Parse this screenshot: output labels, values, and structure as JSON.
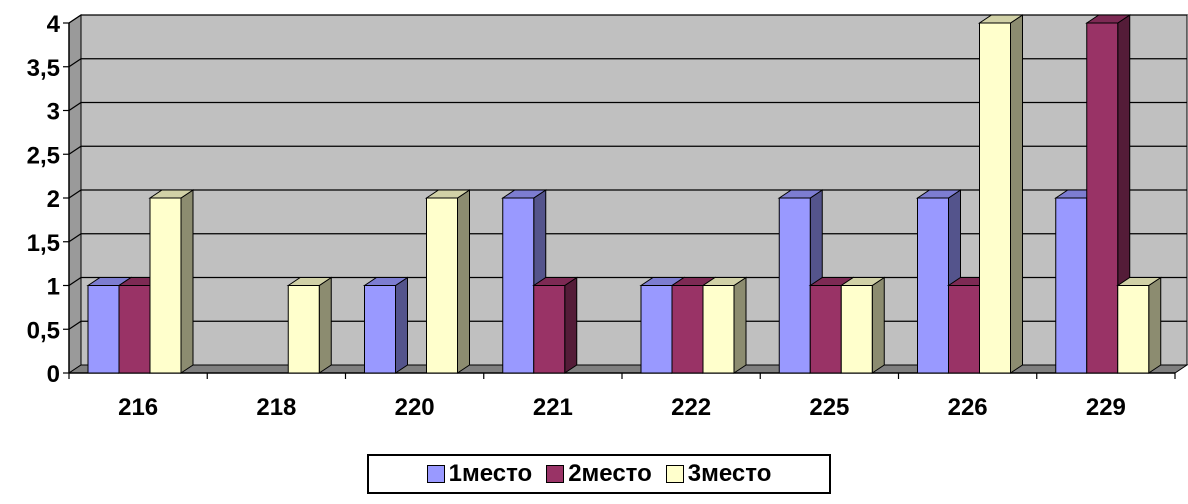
{
  "chart_data": {
    "type": "bar",
    "title": "",
    "xlabel": "",
    "ylabel": "",
    "categories": [
      "216",
      "218",
      "220",
      "221",
      "222",
      "225",
      "226",
      "229"
    ],
    "series": [
      {
        "name": "1место",
        "values": [
          1,
          0,
          1,
          2,
          1,
          2,
          2,
          2
        ],
        "color": "#9999ff"
      },
      {
        "name": "2место",
        "values": [
          1,
          0,
          0,
          1,
          1,
          1,
          1,
          4
        ],
        "color": "#993366"
      },
      {
        "name": "3место",
        "values": [
          2,
          1,
          2,
          0,
          1,
          1,
          4,
          1
        ],
        "color": "#ffffcc"
      }
    ],
    "ylim": [
      0,
      4
    ],
    "yticks": [
      0,
      0.5,
      1,
      1.5,
      2,
      2.5,
      3,
      3.5,
      4
    ],
    "ytick_labels": [
      "0",
      "0,5",
      "1",
      "1,5",
      "2",
      "2,5",
      "3",
      "3,5",
      "4"
    ],
    "grid": true,
    "legend_position": "bottom-center",
    "plot_background": "#c0c0c0"
  }
}
